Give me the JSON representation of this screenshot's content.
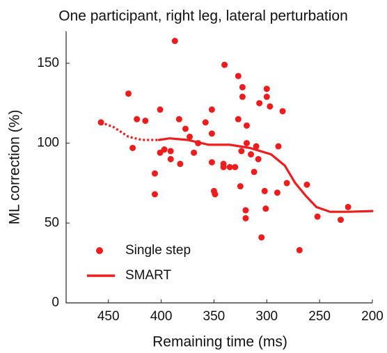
{
  "chart_data": {
    "type": "scatter",
    "title": "One participant, right leg, lateral perturbation",
    "x_label": "Remaining time (ms)",
    "y_label": "ML correction (%)",
    "xlim": [
      490,
      200
    ],
    "ylim": [
      0,
      170
    ],
    "xticks": [
      450,
      400,
      350,
      300,
      250,
      200
    ],
    "yticks": [
      0,
      50,
      100,
      150
    ],
    "legend": "lower left",
    "series": [
      {
        "name": "Single step",
        "type": "scatter",
        "color": "#ee1c1c",
        "x": [
          457,
          431,
          423,
          415,
          427,
          401,
          406,
          406,
          401,
          397,
          391,
          391,
          387,
          383,
          382,
          377,
          373,
          369,
          365,
          358,
          352,
          352,
          352,
          350,
          349,
          340,
          341,
          341,
          335,
          330,
          327,
          327,
          325,
          324,
          323,
          323,
          319,
          319,
          320,
          320,
          315,
          312,
          310,
          308,
          307,
          305,
          302,
          301,
          300,
          300,
          297,
          290,
          289,
          285,
          281,
          269,
          262,
          252,
          230,
          223
        ],
        "values": [
          113,
          131,
          115,
          114,
          97,
          121,
          81,
          68,
          94,
          96,
          95,
          90,
          164,
          115,
          87,
          109,
          104,
          94,
          100,
          113,
          121,
          106,
          88,
          70,
          68,
          149,
          87,
          85,
          85,
          85,
          115,
          142,
          73,
          95,
          129,
          135,
          111,
          100,
          58,
          53,
          93,
          82,
          98,
          90,
          125,
          41,
          70,
          59,
          134,
          129,
          123,
          69,
          98,
          120,
          75,
          33,
          74,
          54,
          52,
          60
        ]
      },
      {
        "name": "SMART",
        "type": "line",
        "color": "#ee1c1c",
        "dotted_before": 402,
        "x": [
          457,
          445,
          431,
          418,
          402,
          392,
          375,
          355,
          335,
          316,
          296,
          283,
          273,
          263,
          253,
          240,
          223,
          200
        ],
        "values": [
          113,
          110,
          104,
          102,
          102,
          103,
          102,
          99,
          99,
          97,
          93,
          86,
          75,
          67,
          60,
          57,
          57,
          57.5
        ]
      }
    ]
  }
}
